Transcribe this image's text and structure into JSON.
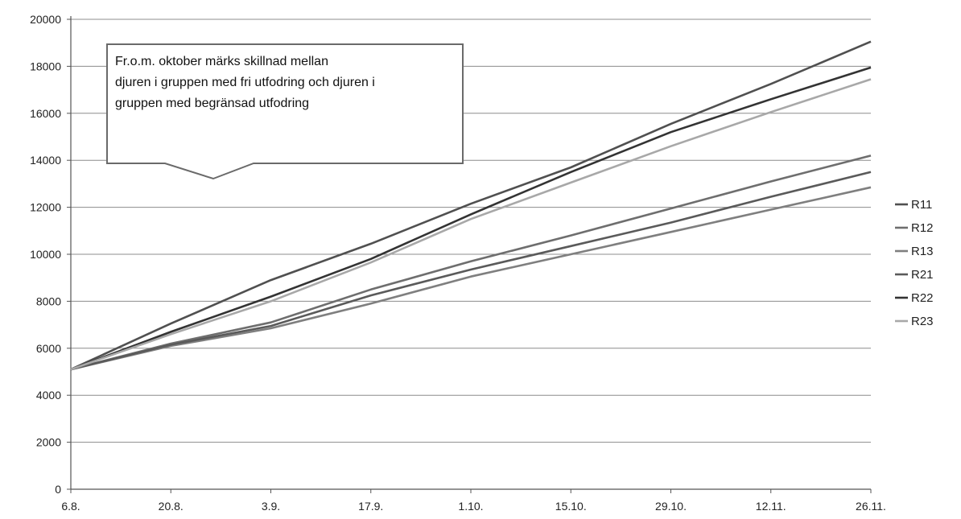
{
  "chart_data": {
    "type": "line",
    "title": "",
    "xlabel": "",
    "ylabel": "",
    "ylim": [
      0,
      20000
    ],
    "yticks": [
      "0",
      "2000",
      "4000",
      "6000",
      "8000",
      "10000",
      "12000",
      "14000",
      "16000",
      "18000",
      "20000"
    ],
    "xticks": [
      "6.8.",
      "20.8.",
      "3.9.",
      "17.9.",
      "1.10.",
      "15.10.",
      "29.10.",
      "12.11.",
      "26.11."
    ],
    "xlim_days": [
      0,
      112
    ],
    "grid": "horizontal",
    "legend_position": "right",
    "series": [
      {
        "name": "R11",
        "color": "#505050",
        "x": [
          "6.8.",
          "20.8.",
          "3.9.",
          "17.9.",
          "1.10.",
          "15.10.",
          "29.10.",
          "12.11.",
          "26.11."
        ],
        "values": [
          5100,
          7050,
          8900,
          10450,
          12150,
          13700,
          15550,
          17250,
          19050
        ]
      },
      {
        "name": "R12",
        "color": "#6e6e6e",
        "x": [
          "6.8.",
          "20.8.",
          "3.9.",
          "17.9.",
          "1.10.",
          "15.10.",
          "29.10.",
          "12.11.",
          "26.11."
        ],
        "values": [
          5100,
          6200,
          7100,
          8500,
          9700,
          10800,
          11950,
          13100,
          14200
        ]
      },
      {
        "name": "R13",
        "color": "#7f7f7f",
        "x": [
          "6.8.",
          "20.8.",
          "3.9.",
          "17.9.",
          "1.10.",
          "15.10.",
          "29.10.",
          "12.11.",
          "26.11."
        ],
        "values": [
          5100,
          6100,
          6850,
          7900,
          9050,
          10000,
          10950,
          11900,
          12850
        ]
      },
      {
        "name": "R21",
        "color": "#5a5a5a",
        "x": [
          "6.8.",
          "20.8.",
          "3.9.",
          "17.9.",
          "1.10.",
          "15.10.",
          "29.10.",
          "12.11.",
          "26.11."
        ],
        "values": [
          5100,
          6150,
          6950,
          8250,
          9350,
          10350,
          11350,
          12450,
          13500
        ]
      },
      {
        "name": "R22",
        "color": "#333333",
        "x": [
          "6.8.",
          "20.8.",
          "3.9.",
          "17.9.",
          "1.10.",
          "15.10.",
          "29.10.",
          "12.11.",
          "26.11."
        ],
        "values": [
          5100,
          6700,
          8200,
          9800,
          11700,
          13500,
          15200,
          16600,
          17950
        ]
      },
      {
        "name": "R23",
        "color": "#a8a8a8",
        "x": [
          "6.8.",
          "20.8.",
          "3.9.",
          "17.9.",
          "1.10.",
          "15.10.",
          "29.10.",
          "12.11.",
          "26.11."
        ],
        "values": [
          5100,
          6600,
          8000,
          9650,
          11500,
          13050,
          14600,
          16050,
          17450
        ]
      }
    ],
    "annotation": {
      "lines": [
        "Fr.o.m. oktober märks skillnad mellan",
        "djuren i gruppen med fri utfodring och djuren i",
        "gruppen med begränsad utfodring"
      ]
    }
  }
}
